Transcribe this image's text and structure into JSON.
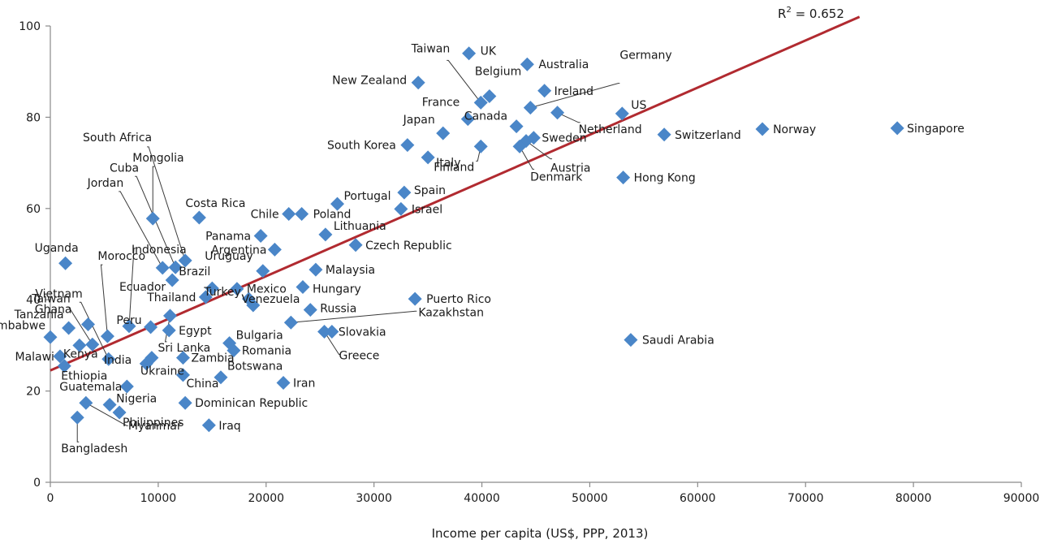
{
  "chart_data": {
    "type": "scatter",
    "title": "",
    "xlabel": "Income per capita (US$, PPP, 2013)",
    "ylabel": "",
    "xlim": [
      0,
      90000
    ],
    "ylim": [
      0,
      100
    ],
    "xticks": [
      0,
      10000,
      20000,
      30000,
      40000,
      50000,
      60000,
      70000,
      80000,
      90000
    ],
    "yticks": [
      0,
      20,
      40,
      60,
      80,
      100
    ],
    "grid": false,
    "marker": "diamond",
    "colors": {
      "points": "#4a86c8",
      "trendline": "#b12a30",
      "axis": "#8a8a8a"
    },
    "trendline": {
      "type": "linear",
      "x": [
        0,
        75000
      ],
      "y": [
        24.5,
        102
      ],
      "r2_label": "R",
      "r2_sup": "2",
      "r2_value": " = 0.652"
    },
    "points": [
      {
        "label": "Singapore",
        "x": 78500,
        "y": 77.6
      },
      {
        "label": "Norway",
        "x": 66000,
        "y": 77.4
      },
      {
        "label": "Switzerland",
        "x": 56900,
        "y": 76.2
      },
      {
        "label": "Hong Kong",
        "x": 53100,
        "y": 66.8
      },
      {
        "label": "US",
        "x": 53000,
        "y": 80.8
      },
      {
        "label": "Saudi Arabia",
        "x": 53800,
        "y": 31.2
      },
      {
        "label": "Netherland",
        "x": 47000,
        "y": 81.0
      },
      {
        "label": "Ireland",
        "x": 45800,
        "y": 85.8
      },
      {
        "label": "Australia",
        "x": 44200,
        "y": 91.6
      },
      {
        "label": "Germany",
        "x": 44500,
        "y": 82.1
      },
      {
        "label": "Sweden",
        "x": 44800,
        "y": 75.5
      },
      {
        "label": "Austria",
        "x": 44100,
        "y": 74.8
      },
      {
        "label": "Denmark",
        "x": 43500,
        "y": 73.6
      },
      {
        "label": "Canada",
        "x": 43200,
        "y": 78.0
      },
      {
        "label": "Belgium",
        "x": 40700,
        "y": 84.6
      },
      {
        "label": "Taiwan",
        "x": 39900,
        "y": 83.2
      },
      {
        "label": "UK",
        "x": 38800,
        "y": 94.0
      },
      {
        "label": "France",
        "x": 38700,
        "y": 79.6
      },
      {
        "label": "Finland",
        "x": 39900,
        "y": 73.6
      },
      {
        "label": "Japan",
        "x": 36400,
        "y": 76.5
      },
      {
        "label": "New Zealand",
        "x": 34100,
        "y": 87.6
      },
      {
        "label": "Italy",
        "x": 35000,
        "y": 71.2
      },
      {
        "label": "South Korea",
        "x": 33100,
        "y": 73.9
      },
      {
        "label": "Spain",
        "x": 32800,
        "y": 63.5
      },
      {
        "label": "Israel",
        "x": 32500,
        "y": 59.9
      },
      {
        "label": "Puerto Rico",
        "x": 33800,
        "y": 40.2
      },
      {
        "label": "Portugal",
        "x": 26600,
        "y": 61.0
      },
      {
        "label": "Czech Republic",
        "x": 28300,
        "y": 52.0
      },
      {
        "label": "Slovakia",
        "x": 26100,
        "y": 33.0
      },
      {
        "label": "Greece",
        "x": 25400,
        "y": 33.0
      },
      {
        "label": "Kazakhstan",
        "x": 22300,
        "y": 35.0
      },
      {
        "label": "Lithuania",
        "x": 25500,
        "y": 54.3
      },
      {
        "label": "Poland",
        "x": 23300,
        "y": 58.8
      },
      {
        "label": "Chile",
        "x": 22100,
        "y": 58.8
      },
      {
        "label": "Malaysia",
        "x": 24600,
        "y": 46.6
      },
      {
        "label": "Hungary",
        "x": 23400,
        "y": 42.8
      },
      {
        "label": "Russia",
        "x": 24100,
        "y": 37.8
      },
      {
        "label": "Turkey",
        "x": 18800,
        "y": 38.8
      },
      {
        "label": "Iran",
        "x": 21600,
        "y": 21.8
      },
      {
        "label": "Argentina",
        "x": 20800,
        "y": 51.0
      },
      {
        "label": "Panama",
        "x": 19500,
        "y": 54.0
      },
      {
        "label": "Uruguay",
        "x": 19700,
        "y": 46.3
      },
      {
        "label": "Venezuela",
        "x": 18400,
        "y": 40.2
      },
      {
        "label": "Mexico",
        "x": 17300,
        "y": 42.4
      },
      {
        "label": "Bulgaria",
        "x": 16600,
        "y": 30.5
      },
      {
        "label": "Romania",
        "x": 17000,
        "y": 28.9
      },
      {
        "label": "Botswana",
        "x": 15800,
        "y": 23.0
      },
      {
        "label": "Iraq",
        "x": 14700,
        "y": 12.5
      },
      {
        "label": "Dominican Republic",
        "x": 12500,
        "y": 17.4
      },
      {
        "label": "Costa Rica",
        "x": 13800,
        "y": 58.0
      },
      {
        "label": "Brazil",
        "x": 15000,
        "y": 42.5
      },
      {
        "label": "Thailand",
        "x": 14400,
        "y": 40.6
      },
      {
        "label": "Zambia",
        "x": 12300,
        "y": 27.3
      },
      {
        "label": "China",
        "x": 12300,
        "y": 23.5
      },
      {
        "label": "South Africa",
        "x": 12500,
        "y": 48.6
      },
      {
        "label": "Mongolia",
        "x": 9500,
        "y": 57.8
      },
      {
        "label": "Cuba",
        "x": 11600,
        "y": 47.1
      },
      {
        "label": "Jordan",
        "x": 10400,
        "y": 47.0
      },
      {
        "label": "Ecuador",
        "x": 11300,
        "y": 44.3
      },
      {
        "label": "Egypt",
        "x": 11000,
        "y": 33.3
      },
      {
        "label": "Sri Lanka",
        "x": 11100,
        "y": 36.5
      },
      {
        "label": "Peru",
        "x": 9300,
        "y": 34.0
      },
      {
        "label": "Indonesia",
        "x": 7300,
        "y": 34.2
      },
      {
        "label": "Ukraine",
        "x": 9400,
        "y": 27.3
      },
      {
        "label": "India",
        "x": 8900,
        "y": 26.0
      },
      {
        "label": "Guatemala",
        "x": 7100,
        "y": 21.0
      },
      {
        "label": "Morocco",
        "x": 5300,
        "y": 32.0
      },
      {
        "label": "Philippines",
        "x": 6400,
        "y": 15.3
      },
      {
        "label": "Nigeria",
        "x": 5500,
        "y": 17.0
      },
      {
        "label": "Vietnam",
        "x": 5400,
        "y": 27.0
      },
      {
        "label": "Taiwan",
        "x": 3900,
        "y": 30.2
      },
      {
        "label": "Ghana",
        "x": 3500,
        "y": 34.6
      },
      {
        "label": "Myanmar",
        "x": 3300,
        "y": 17.4
      },
      {
        "label": "Kenya",
        "x": 2700,
        "y": 30.0
      },
      {
        "label": "Bangladesh",
        "x": 2500,
        "y": 14.2
      },
      {
        "label": "Tanzania",
        "x": 1700,
        "y": 33.8
      },
      {
        "label": "Uganda",
        "x": 1400,
        "y": 48.0
      },
      {
        "label": "Ethiopia",
        "x": 1300,
        "y": 25.5
      },
      {
        "label": "Malawi",
        "x": 900,
        "y": 27.6
      },
      {
        "label": "Zimbabwe",
        "x": 0,
        "y": 31.8
      }
    ]
  }
}
